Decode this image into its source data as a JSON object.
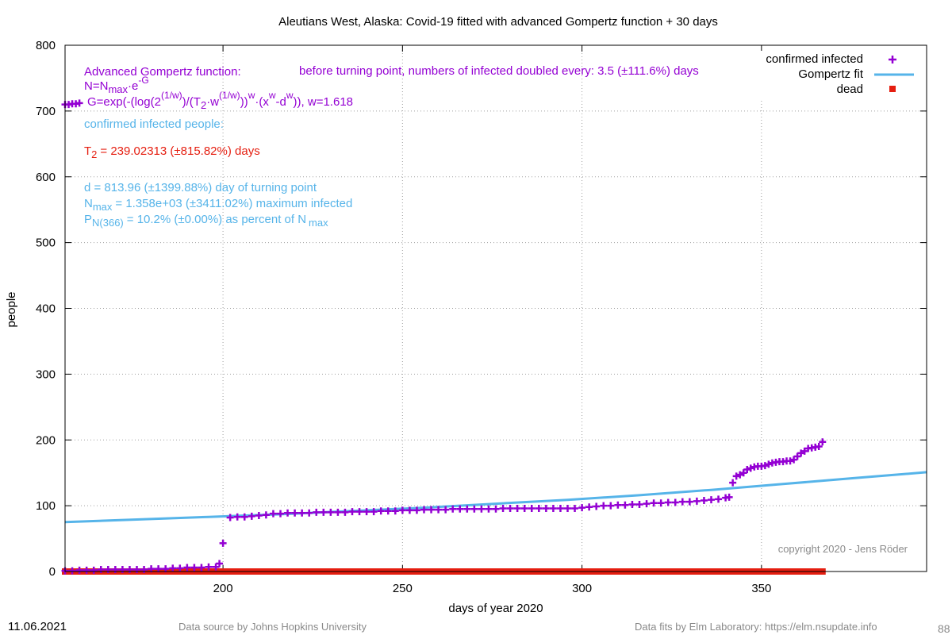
{
  "colors": {
    "confirmed": "#9400d3",
    "fit": "#56b4e9",
    "dead": "#e51e10",
    "annotation_red": "#e51e10",
    "footer_gray": "#8a8a8a"
  },
  "footer": {
    "date": "11.06.2021",
    "source": "Data source by Johns Hopkins University",
    "fits": "Data fits by Elm Laboratory: https://elm.nsupdate.info",
    "page_number": "88"
  },
  "annotations": {
    "formula_title": "Advanced Gompertz function:",
    "formula_n_a": "N=N",
    "formula_n_sub": "max",
    "formula_n_b": "·e",
    "formula_n_sup": "-G",
    "formula_g_a": "G=exp(-(log(2",
    "formula_g_sup1": "(1/w)",
    "formula_g_b": ")/(T",
    "formula_g_sub": "2",
    "formula_g_c": "·w",
    "formula_g_sup2": "(1/w)",
    "formula_g_d": "))",
    "formula_g_sup3": "w",
    "formula_g_e": "·(x",
    "formula_g_sup4": "w",
    "formula_g_f": "-d",
    "formula_g_sup5": "w",
    "formula_g_g": ")), w=1.618",
    "doubling": "before turning point, numbers of infected doubled every: 3.5 (±111.6%) days",
    "confirmed_header": "confirmed infected people:",
    "t2_a": "T",
    "t2_sub": "2",
    "t2_b": "= 239.02313 (±815.82%) days",
    "turning_point": "d = 813.96 (±1399.88%) day of turning point",
    "nmax_a": "N",
    "nmax_sub": "max",
    "nmax_b": "= 1.358e+03 (±3411.02%) maximum infected",
    "pn_a": "P",
    "pn_sub": "N(366)",
    "pn_b": "= 10.2% (±0.00%) as percent of N",
    "pn_sub2": "max",
    "copyright": "copyright 2020 - Jens Röder"
  },
  "chart_data": {
    "type": "scatter",
    "title": "Aleutians West,  Alaska: Covid-19 fitted with advanced Gompertz function + 30 days",
    "xlabel": "days of year 2020",
    "ylabel": "people",
    "xlim": [
      156,
      396
    ],
    "ylim": [
      0,
      800
    ],
    "xticks": [
      200,
      250,
      300,
      350
    ],
    "yticks": [
      0,
      100,
      200,
      300,
      400,
      500,
      600,
      700,
      800
    ],
    "grid": true,
    "legend_position": "top-right",
    "series": [
      {
        "name": "confirmed infected",
        "kind": "points",
        "points": [
          [
            156,
            710
          ],
          [
            157,
            710
          ],
          [
            158,
            711
          ],
          [
            159,
            711
          ],
          [
            160,
            712
          ],
          [
            156,
            1
          ],
          [
            158,
            1
          ],
          [
            160,
            2
          ],
          [
            162,
            2
          ],
          [
            164,
            2
          ],
          [
            166,
            3
          ],
          [
            168,
            3
          ],
          [
            170,
            3
          ],
          [
            172,
            3
          ],
          [
            174,
            3
          ],
          [
            176,
            3
          ],
          [
            178,
            3
          ],
          [
            180,
            4
          ],
          [
            182,
            4
          ],
          [
            184,
            4
          ],
          [
            186,
            5
          ],
          [
            188,
            5
          ],
          [
            190,
            6
          ],
          [
            192,
            6
          ],
          [
            194,
            6
          ],
          [
            196,
            7
          ],
          [
            198,
            7
          ],
          [
            199,
            12
          ],
          [
            200,
            43
          ],
          [
            202,
            82
          ],
          [
            204,
            83
          ],
          [
            206,
            83
          ],
          [
            208,
            84
          ],
          [
            210,
            85
          ],
          [
            212,
            86
          ],
          [
            214,
            88
          ],
          [
            216,
            88
          ],
          [
            218,
            89
          ],
          [
            220,
            89
          ],
          [
            222,
            89
          ],
          [
            224,
            89
          ],
          [
            226,
            90
          ],
          [
            228,
            90
          ],
          [
            230,
            90
          ],
          [
            232,
            90
          ],
          [
            234,
            90
          ],
          [
            236,
            91
          ],
          [
            238,
            91
          ],
          [
            240,
            91
          ],
          [
            242,
            91
          ],
          [
            244,
            92
          ],
          [
            246,
            92
          ],
          [
            248,
            92
          ],
          [
            250,
            93
          ],
          [
            252,
            93
          ],
          [
            254,
            93
          ],
          [
            256,
            94
          ],
          [
            258,
            94
          ],
          [
            260,
            94
          ],
          [
            262,
            94
          ],
          [
            264,
            95
          ],
          [
            266,
            95
          ],
          [
            268,
            95
          ],
          [
            270,
            95
          ],
          [
            272,
            95
          ],
          [
            274,
            95
          ],
          [
            276,
            95
          ],
          [
            278,
            96
          ],
          [
            280,
            96
          ],
          [
            282,
            96
          ],
          [
            284,
            96
          ],
          [
            286,
            96
          ],
          [
            288,
            96
          ],
          [
            290,
            96
          ],
          [
            292,
            96
          ],
          [
            294,
            96
          ],
          [
            296,
            96
          ],
          [
            298,
            96
          ],
          [
            300,
            97
          ],
          [
            302,
            98
          ],
          [
            304,
            99
          ],
          [
            306,
            100
          ],
          [
            308,
            100
          ],
          [
            310,
            101
          ],
          [
            312,
            101
          ],
          [
            314,
            102
          ],
          [
            316,
            102
          ],
          [
            318,
            103
          ],
          [
            320,
            104
          ],
          [
            322,
            104
          ],
          [
            324,
            105
          ],
          [
            326,
            105
          ],
          [
            328,
            106
          ],
          [
            330,
            106
          ],
          [
            332,
            107
          ],
          [
            334,
            108
          ],
          [
            336,
            109
          ],
          [
            338,
            110
          ],
          [
            340,
            112
          ],
          [
            341,
            113
          ],
          [
            342,
            135
          ],
          [
            343,
            145
          ],
          [
            344,
            147
          ],
          [
            345,
            150
          ],
          [
            346,
            155
          ],
          [
            347,
            157
          ],
          [
            348,
            159
          ],
          [
            349,
            160
          ],
          [
            350,
            160
          ],
          [
            351,
            161
          ],
          [
            352,
            163
          ],
          [
            353,
            165
          ],
          [
            354,
            166
          ],
          [
            355,
            167
          ],
          [
            356,
            167
          ],
          [
            357,
            168
          ],
          [
            358,
            168
          ],
          [
            359,
            170
          ],
          [
            360,
            175
          ],
          [
            361,
            180
          ],
          [
            362,
            183
          ],
          [
            363,
            187
          ],
          [
            364,
            188
          ],
          [
            365,
            189
          ],
          [
            366,
            190
          ],
          [
            367,
            197
          ]
        ]
      },
      {
        "name": "Gompertz fit",
        "kind": "line",
        "points": [
          [
            156,
            75
          ],
          [
            176,
            79
          ],
          [
            196,
            83
          ],
          [
            216,
            87
          ],
          [
            236,
            92
          ],
          [
            256,
            97
          ],
          [
            276,
            103
          ],
          [
            296,
            109
          ],
          [
            316,
            116
          ],
          [
            336,
            124
          ],
          [
            356,
            133
          ],
          [
            376,
            142
          ],
          [
            396,
            151
          ]
        ]
      },
      {
        "name": "dead",
        "kind": "squares",
        "x_range": [
          156,
          367
        ],
        "value": 0
      }
    ]
  }
}
